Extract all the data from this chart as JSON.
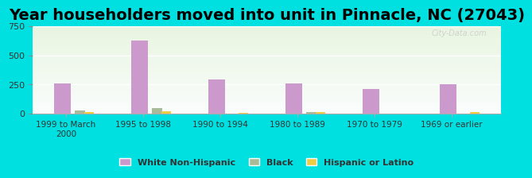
{
  "title": "Year householders moved into unit in Pinnacle, NC (27043)",
  "categories": [
    "1999 to March\n2000",
    "1995 to 1998",
    "1990 to 1994",
    "1980 to 1989",
    "1970 to 1979",
    "1969 or earlier"
  ],
  "white_non_hispanic": [
    258,
    630,
    295,
    262,
    215,
    255
  ],
  "black": [
    30,
    45,
    0,
    15,
    0,
    0
  ],
  "hispanic_or_latino": [
    15,
    20,
    10,
    15,
    0,
    15
  ],
  "white_color": "#cc99cc",
  "black_color": "#aabb99",
  "hispanic_color": "#eecc44",
  "background_outer": "#00e0e0",
  "ylim": [
    0,
    750
  ],
  "yticks": [
    0,
    250,
    500,
    750
  ],
  "title_fontsize": 14,
  "legend_labels": [
    "White Non-Hispanic",
    "Black",
    "Hispanic or Latino"
  ],
  "bar_width": 0.18,
  "watermark": "City-Data.com"
}
